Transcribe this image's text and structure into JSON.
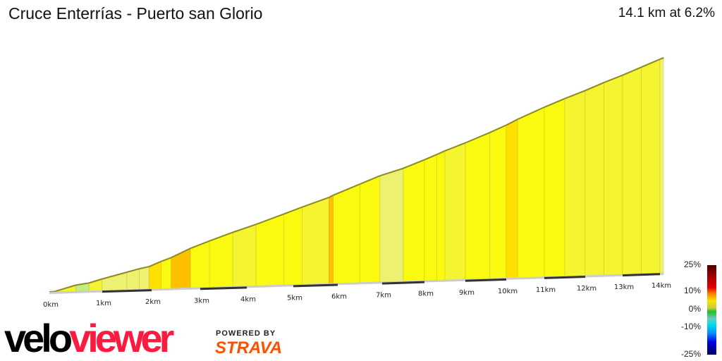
{
  "header": {
    "title": "Cruce Enterrías - Puerto san Glorio",
    "summary": "14.1 km at 6.2%"
  },
  "chart_data": {
    "type": "area",
    "title": "Cruce Enterrías - Puerto san Glorio",
    "xlabel": "",
    "ylabel": "",
    "x_ticks": [
      "0km",
      "1km",
      "2km",
      "3km",
      "4km",
      "5km",
      "6km",
      "7km",
      "8km",
      "9km",
      "10km",
      "11km",
      "12km",
      "13km",
      "14km"
    ],
    "xlim": [
      0,
      14.1
    ],
    "segments": [
      {
        "from": 0,
        "to": 0.1,
        "grade": 1
      },
      {
        "from": 0.1,
        "to": 0.5,
        "grade": 6
      },
      {
        "from": 0.5,
        "to": 0.75,
        "grade": 3
      },
      {
        "from": 0.75,
        "to": 1.0,
        "grade": 6
      },
      {
        "from": 1.0,
        "to": 1.5,
        "grade": 5
      },
      {
        "from": 1.5,
        "to": 1.75,
        "grade": 5
      },
      {
        "from": 1.75,
        "to": 1.95,
        "grade": 4
      },
      {
        "from": 1.95,
        "to": 2.2,
        "grade": 8
      },
      {
        "from": 2.2,
        "to": 2.4,
        "grade": 7
      },
      {
        "from": 2.4,
        "to": 2.8,
        "grade": 9
      },
      {
        "from": 2.8,
        "to": 3.2,
        "grade": 7
      },
      {
        "from": 3.2,
        "to": 3.7,
        "grade": 6.5
      },
      {
        "from": 3.7,
        "to": 4.2,
        "grade": 6
      },
      {
        "from": 4.2,
        "to": 4.8,
        "grade": 6.5
      },
      {
        "from": 4.8,
        "to": 5.2,
        "grade": 6.5
      },
      {
        "from": 5.2,
        "to": 5.8,
        "grade": 6
      },
      {
        "from": 5.8,
        "to": 5.9,
        "grade": 9
      },
      {
        "from": 5.9,
        "to": 6.5,
        "grade": 7
      },
      {
        "from": 6.5,
        "to": 6.95,
        "grade": 7
      },
      {
        "from": 6.95,
        "to": 7.5,
        "grade": 5
      },
      {
        "from": 7.5,
        "to": 8.0,
        "grade": 6.5
      },
      {
        "from": 8.0,
        "to": 8.3,
        "grade": 6.5
      },
      {
        "from": 8.3,
        "to": 8.5,
        "grade": 7
      },
      {
        "from": 8.5,
        "to": 9.0,
        "grade": 6
      },
      {
        "from": 9.0,
        "to": 9.6,
        "grade": 6.5
      },
      {
        "from": 9.6,
        "to": 10.0,
        "grade": 7
      },
      {
        "from": 10.0,
        "to": 10.3,
        "grade": 7.5
      },
      {
        "from": 10.3,
        "to": 11.0,
        "grade": 6.5
      },
      {
        "from": 11.0,
        "to": 11.5,
        "grade": 6.5
      },
      {
        "from": 11.5,
        "to": 12.0,
        "grade": 6
      },
      {
        "from": 12.0,
        "to": 12.5,
        "grade": 6
      },
      {
        "from": 12.5,
        "to": 13.0,
        "grade": 5.5
      },
      {
        "from": 13.0,
        "to": 13.5,
        "grade": 6
      },
      {
        "from": 13.5,
        "to": 14.0,
        "grade": 6
      },
      {
        "from": 14.0,
        "to": 14.1,
        "grade": 5
      }
    ],
    "legend": {
      "labels": [
        "25%",
        "10%",
        "0%",
        "-10%",
        "-25%"
      ],
      "placement": "bottom-right"
    }
  },
  "branding": {
    "logo_a": "velo",
    "logo_b": "viewer",
    "powered": "POWERED BY",
    "strava": "STRAVA"
  }
}
